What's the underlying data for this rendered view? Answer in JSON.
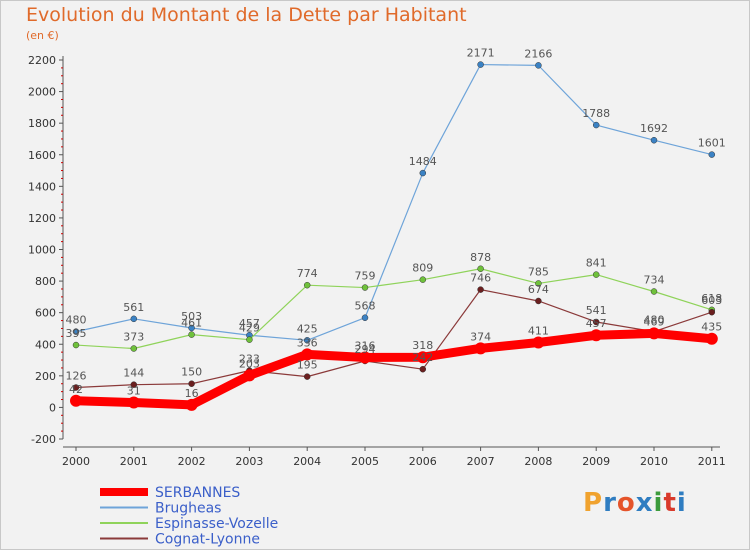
{
  "title": "Evolution du Montant de la Dette par Habitant",
  "unit": "(en €)",
  "logo": {
    "text": "Proxiti",
    "colors": [
      "#f0a22e",
      "#2f7dc1",
      "#e5542a",
      "#2f7dc1",
      "#3c9b3c",
      "#d93a2b",
      "#2f7dc1"
    ]
  },
  "chart_data": {
    "type": "line",
    "x": [
      "2000",
      "2001",
      "2002",
      "2003",
      "2004",
      "2005",
      "2006",
      "2007",
      "2008",
      "2009",
      "2010",
      "2011"
    ],
    "ylim": [
      -200,
      2200
    ],
    "yticks": [
      -200,
      0,
      200,
      400,
      600,
      800,
      1000,
      1200,
      1400,
      1600,
      1800,
      2000,
      2200
    ],
    "grid": false,
    "legend_position": "bottom-left",
    "series": [
      {
        "name": "SERBANNES",
        "color": "#ff0000",
        "width": 9,
        "dot": 6,
        "values": [
          42,
          31,
          16,
          203,
          336,
          316,
          318,
          374,
          411,
          457,
          469,
          435
        ],
        "labels": [
          "42",
          "31",
          "16",
          "203",
          "336",
          "316",
          "318",
          "374",
          "411",
          "457",
          "469",
          "435"
        ]
      },
      {
        "name": "Brugheas",
        "color": "#6ea4d9",
        "width": 1.2,
        "dot": 3,
        "values": [
          480,
          561,
          503,
          457,
          425,
          568,
          1484,
          2171,
          2166,
          1788,
          1692,
          1601
        ],
        "labels": [
          "480",
          "561",
          "503",
          "457",
          "425",
          "568",
          "1484",
          "2171",
          "2166",
          "1788",
          "1692",
          "1601"
        ]
      },
      {
        "name": "Espinasse-Vozelle",
        "color": "#8fd35a",
        "width": 1.2,
        "dot": 3,
        "values": [
          395,
          373,
          461,
          429,
          774,
          759,
          809,
          878,
          785,
          841,
          734,
          618
        ],
        "labels": [
          "395",
          "373",
          "461",
          "429",
          "774",
          "759",
          "809",
          "878",
          "785",
          "841",
          "734",
          "618"
        ]
      },
      {
        "name": "Cognat-Lyonne",
        "color": "#8b3a3a",
        "width": 1.2,
        "dot": 3,
        "values": [
          126,
          144,
          150,
          233,
          195,
          294,
          242,
          746,
          674,
          541,
          480,
          603
        ],
        "labels": [
          "126",
          "144",
          "150",
          "233",
          "195",
          "294",
          "242",
          "746",
          "674",
          "541",
          "480",
          "603"
        ]
      }
    ]
  }
}
